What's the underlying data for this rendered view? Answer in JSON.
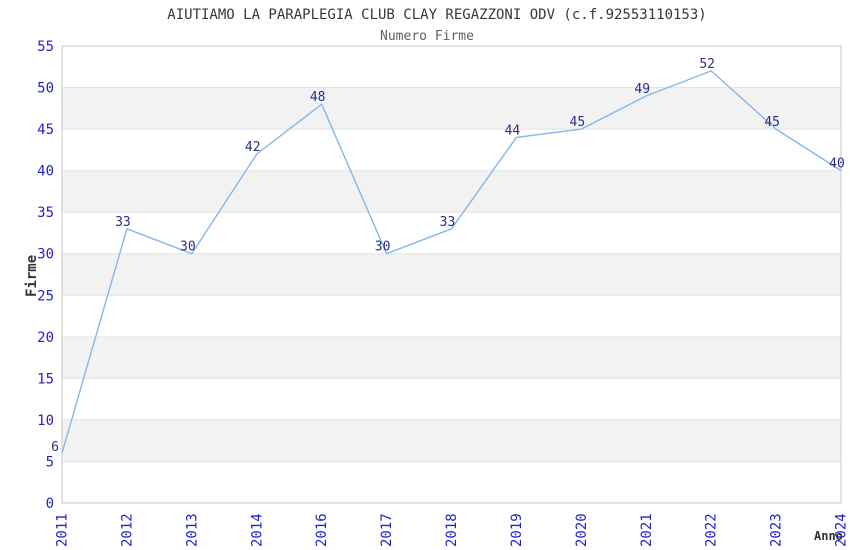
{
  "chart_data": {
    "type": "line",
    "title": "AIUTIAMO LA PARAPLEGIA CLUB CLAY REGAZZONI ODV (c.f.92553110153)",
    "subtitle": "Numero Firme",
    "xlabel": "Anno",
    "ylabel": "Firme",
    "categories": [
      "2011",
      "2012",
      "2013",
      "2014",
      "2016",
      "2017",
      "2018",
      "2019",
      "2020",
      "2021",
      "2022",
      "2023",
      "2024"
    ],
    "values": [
      6,
      33,
      30,
      42,
      48,
      30,
      33,
      44,
      45,
      49,
      52,
      45,
      40
    ],
    "ylim": [
      0,
      55
    ],
    "ytick_step": 5,
    "grid": true,
    "legend_position": "none",
    "stripe_bands": true,
    "colors": {
      "line": "#85b7e9",
      "value_label": "#2d2d8c",
      "tick_label": "#2323cd",
      "title": "#383838",
      "subtitle": "#606060",
      "axis_label": "#333333",
      "band": "#f2f2f2",
      "gridline": "#e4e4e4",
      "border": "#c9c9c9",
      "background": "#ffffff"
    }
  }
}
